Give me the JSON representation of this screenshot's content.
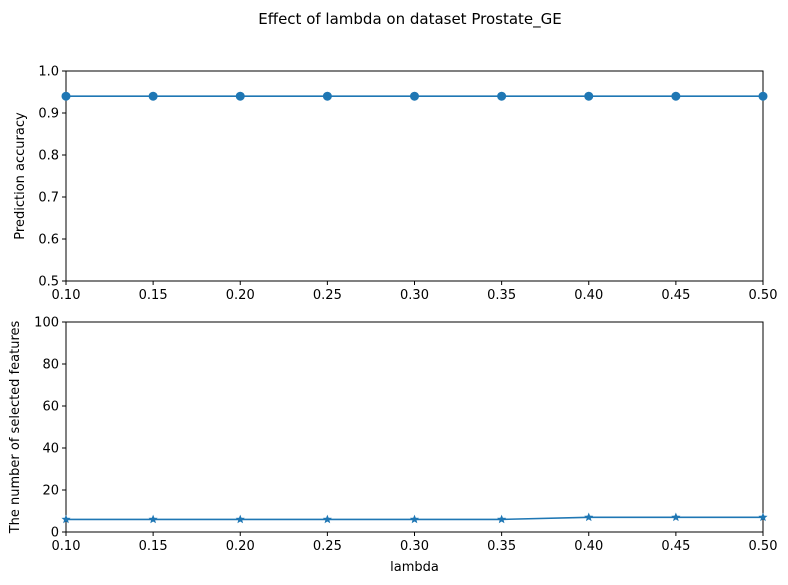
{
  "figure": {
    "suptitle": "Effect of lambda on dataset Prostate_GE",
    "line_color": "#1f77b4"
  },
  "chart_data": [
    {
      "type": "line",
      "marker": "circle",
      "x": [
        0.1,
        0.15,
        0.2,
        0.25,
        0.3,
        0.35,
        0.4,
        0.45,
        0.5
      ],
      "y": [
        0.94,
        0.94,
        0.94,
        0.94,
        0.94,
        0.94,
        0.94,
        0.94,
        0.94
      ],
      "xlabel": "",
      "ylabel": "Prediction accuracy",
      "xlim": [
        0.1,
        0.5
      ],
      "ylim": [
        0.5,
        1.0
      ],
      "xticks": [
        "0.10",
        "0.15",
        "0.20",
        "0.25",
        "0.30",
        "0.35",
        "0.40",
        "0.45",
        "0.50"
      ],
      "yticks": [
        "0.5",
        "0.6",
        "0.7",
        "0.8",
        "0.9",
        "1.0"
      ],
      "grid": false
    },
    {
      "type": "line",
      "marker": "star",
      "x": [
        0.1,
        0.15,
        0.2,
        0.25,
        0.3,
        0.35,
        0.4,
        0.45,
        0.5
      ],
      "y": [
        6,
        6,
        6,
        6,
        6,
        6,
        7,
        7,
        7
      ],
      "xlabel": "lambda",
      "ylabel": "The number of selected features",
      "xlim": [
        0.1,
        0.5
      ],
      "ylim": [
        0,
        100
      ],
      "xticks": [
        "0.10",
        "0.15",
        "0.20",
        "0.25",
        "0.30",
        "0.35",
        "0.40",
        "0.45",
        "0.50"
      ],
      "yticks": [
        "0",
        "20",
        "40",
        "60",
        "80",
        "100"
      ],
      "grid": false
    }
  ]
}
